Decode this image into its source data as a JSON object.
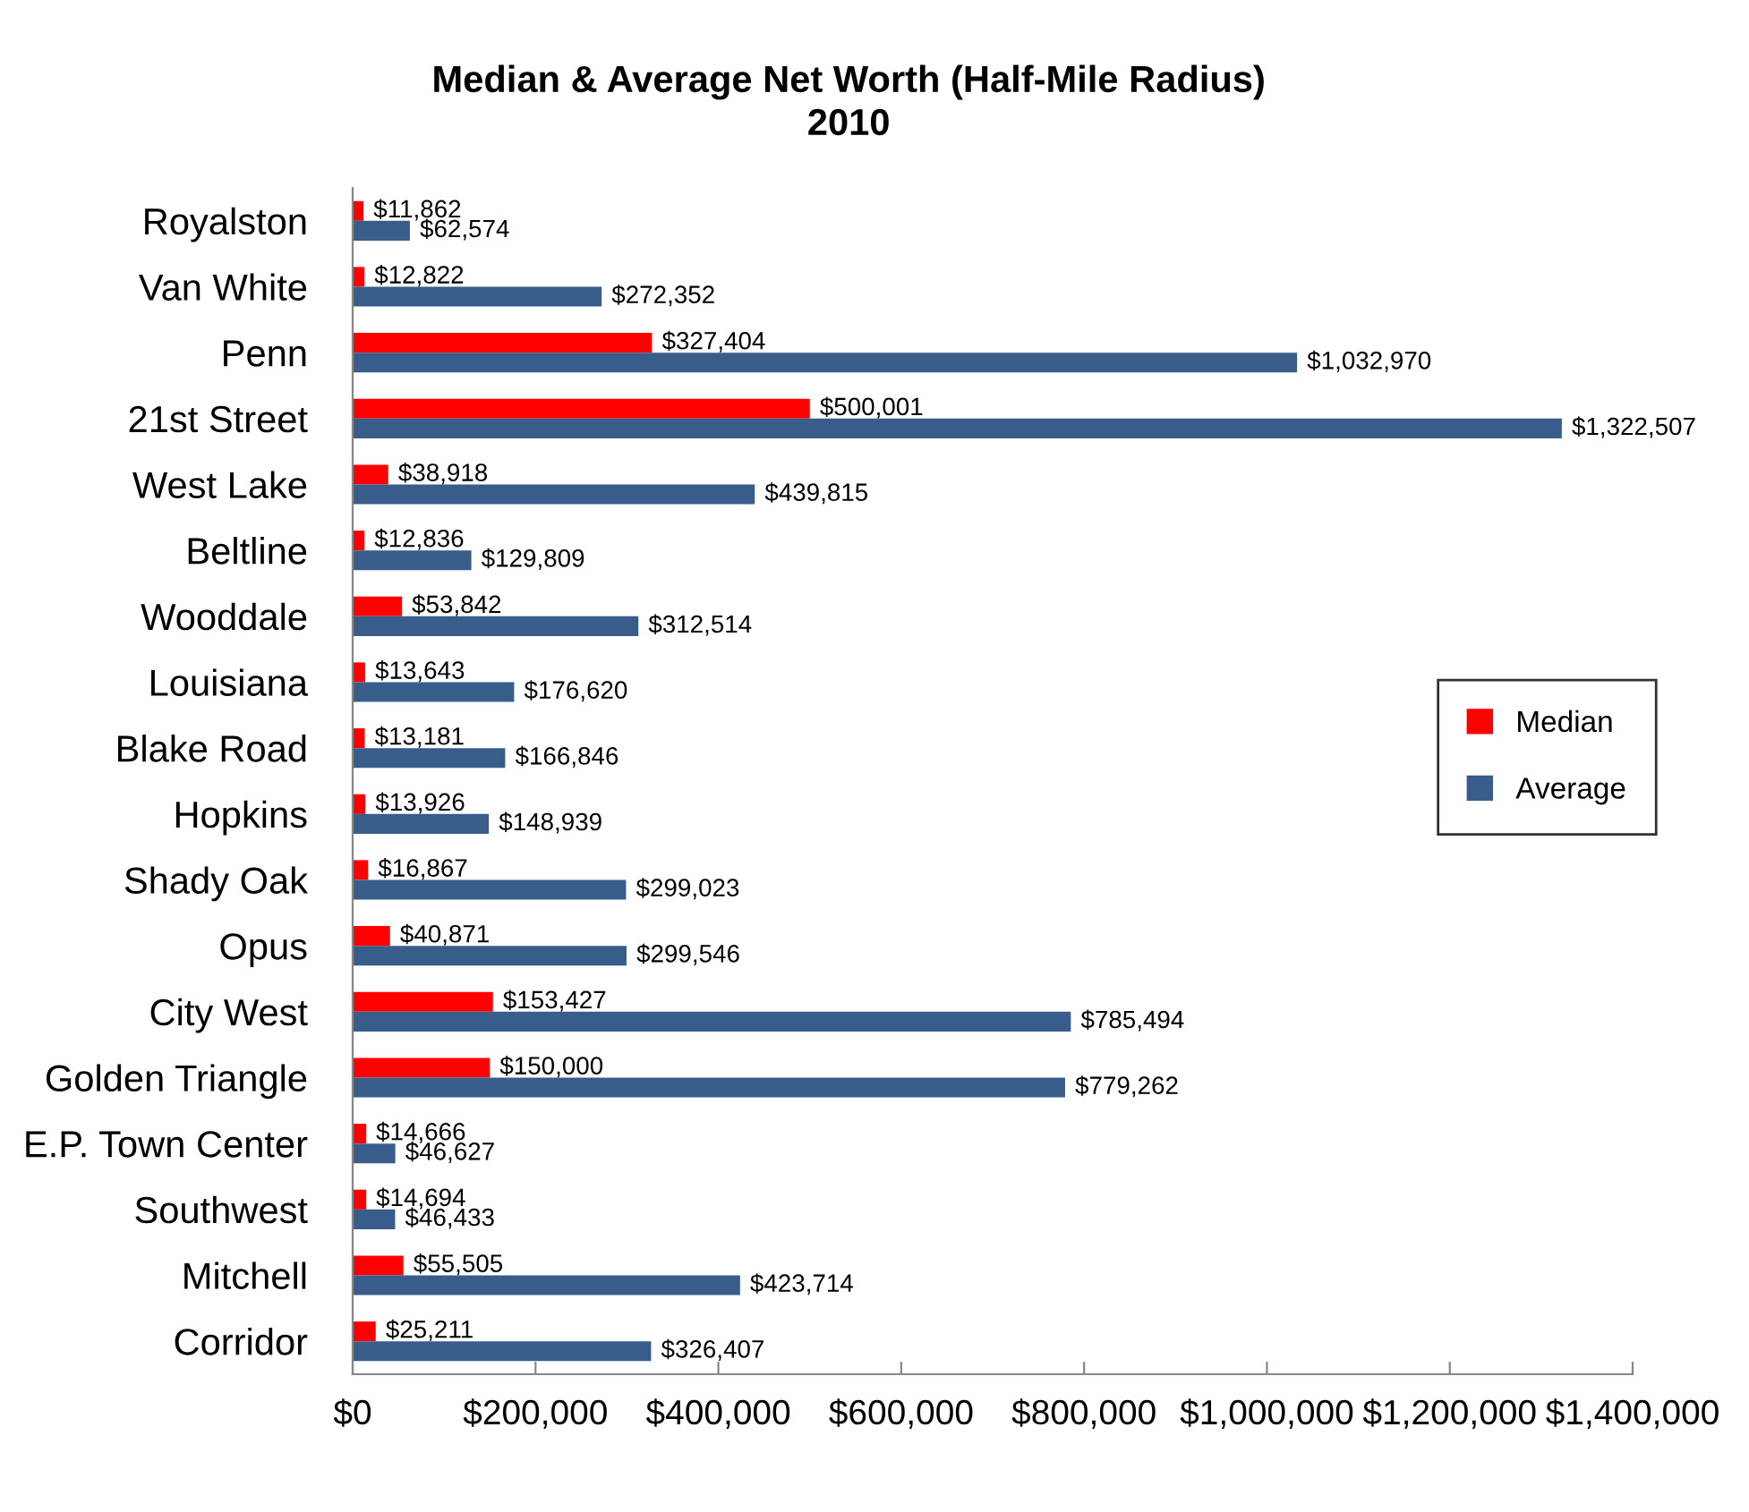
{
  "chart_data": {
    "type": "bar",
    "orientation": "horizontal",
    "title": "Median & Average Net Worth (Half-Mile Radius)\n2010",
    "categories": [
      "Royalston",
      "Van White",
      "Penn",
      "21st Street",
      "West Lake",
      "Beltline",
      "Wooddale",
      "Louisiana",
      "Blake Road",
      "Hopkins",
      "Shady Oak",
      "Opus",
      "City West",
      "Golden Triangle",
      "E.P. Town Center",
      "Southwest",
      "Mitchell",
      "Corridor"
    ],
    "series": [
      {
        "name": "Median",
        "color": "#ff0000",
        "values": [
          11862,
          12822,
          327404,
          500001,
          38918,
          12836,
          53842,
          13643,
          13181,
          13926,
          16867,
          40871,
          153427,
          150000,
          14666,
          14694,
          55505,
          25211
        ],
        "value_labels": [
          "$11,862",
          "$12,822",
          "$327,404",
          "$500,001",
          "$38,918",
          "$12,836",
          "$53,842",
          "$13,643",
          "$13,181",
          "$13,926",
          "$16,867",
          "$40,871",
          "$153,427",
          "$150,000",
          "$14,666",
          "$14,694",
          "$55,505",
          "$25,211"
        ]
      },
      {
        "name": "Average",
        "color": "#385d8a",
        "values": [
          62574,
          272352,
          1032970,
          1322507,
          439815,
          129809,
          312514,
          176620,
          166846,
          148939,
          299023,
          299546,
          785494,
          779262,
          46627,
          46433,
          423714,
          326407
        ],
        "value_labels": [
          "$62,574",
          "$272,352",
          "$1,032,970",
          "$1,322,507",
          "$439,815",
          "$129,809",
          "$312,514",
          "$176,620",
          "$166,846",
          "$148,939",
          "$299,023",
          "$299,546",
          "$785,494",
          "$779,262",
          "$46,627",
          "$46,433",
          "$423,714",
          "$326,407"
        ]
      }
    ],
    "xlim": [
      0,
      1400000
    ],
    "xticks": [
      {
        "value": 0,
        "label": "$0"
      },
      {
        "value": 200000,
        "label": "$200,000"
      },
      {
        "value": 400000,
        "label": "$400,000"
      },
      {
        "value": 600000,
        "label": "$600,000"
      },
      {
        "value": 800000,
        "label": "$800,000"
      },
      {
        "value": 1000000,
        "label": "$1,000,000"
      },
      {
        "value": 1200000,
        "label": "$1,200,000"
      },
      {
        "value": 1400000,
        "label": "$1,400,000"
      }
    ],
    "grid": false,
    "legend": "right"
  }
}
